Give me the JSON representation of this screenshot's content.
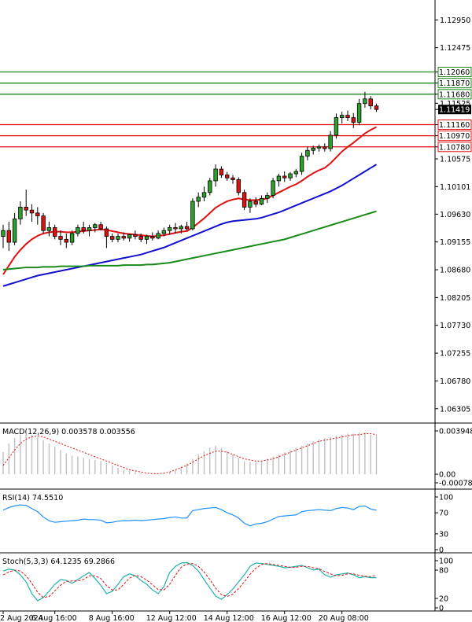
{
  "chart_data": [
    {
      "type": "candlestick",
      "title": "",
      "price_axis": {
        "range": [
          1.0606,
          1.1329
        ],
        "ticks": [
          "1.12950",
          "1.12475",
          "1.12060",
          "1.11870",
          "1.11680",
          "1.11525",
          "1.11419",
          "1.11160",
          "1.10970",
          "1.10780",
          "1.10575",
          "1.10101",
          "1.09630",
          "1.09155",
          "1.08680",
          "1.08205",
          "1.07730",
          "1.07255",
          "1.06780",
          "1.06305"
        ]
      },
      "horizontal_levels": [
        {
          "value": 1.1206,
          "label": "1.12060",
          "color": "#1a8a1a"
        },
        {
          "value": 1.1187,
          "label": "1.11870",
          "color": "#1a8a1a"
        },
        {
          "value": 1.1168,
          "label": "1.11680",
          "color": "#1a8a1a"
        },
        {
          "value": 1.1116,
          "label": "1.11160",
          "color": "#e01010"
        },
        {
          "value": 1.1097,
          "label": "1.10970",
          "color": "#e01010"
        },
        {
          "value": 1.1078,
          "label": "1.10780",
          "color": "#e01010"
        }
      ],
      "last_price": {
        "value": 1.11419,
        "label": "1.11419"
      },
      "candles": [
        [
          1.0925,
          1.0945,
          1.0905,
          1.0935
        ],
        [
          1.0935,
          1.095,
          1.09,
          1.0915
        ],
        [
          1.0915,
          1.0965,
          1.091,
          1.0955
        ],
        [
          1.0955,
          1.0985,
          1.0945,
          1.0975
        ],
        [
          1.0975,
          1.1005,
          1.096,
          1.097
        ],
        [
          1.097,
          1.098,
          1.095,
          1.0965
        ],
        [
          1.0965,
          1.0975,
          1.0945,
          1.096
        ],
        [
          1.096,
          1.0965,
          1.093,
          1.0935
        ],
        [
          1.0935,
          1.095,
          1.0925,
          1.094
        ],
        [
          1.094,
          1.0945,
          1.092,
          1.0925
        ],
        [
          1.0925,
          1.0935,
          1.091,
          1.092
        ],
        [
          1.092,
          1.093,
          1.0905,
          1.0915
        ],
        [
          1.0915,
          1.0935,
          1.091,
          1.093
        ],
        [
          1.093,
          1.0945,
          1.0925,
          1.094
        ],
        [
          1.094,
          1.095,
          1.093,
          1.0935
        ],
        [
          1.0935,
          1.0945,
          1.0925,
          1.094
        ],
        [
          1.094,
          1.0948,
          1.0932,
          1.0945
        ],
        [
          1.0945,
          1.095,
          1.0935,
          1.0938
        ],
        [
          1.0938,
          1.0942,
          1.0905,
          1.0925
        ],
        [
          1.0925,
          1.093,
          1.0915,
          1.092
        ],
        [
          1.092,
          1.093,
          1.0915,
          1.0925
        ],
        [
          1.0925,
          1.0932,
          1.0918,
          1.0922
        ],
        [
          1.0922,
          1.093,
          1.0916,
          1.0928
        ],
        [
          1.0928,
          1.0935,
          1.092,
          1.0925
        ],
        [
          1.0925,
          1.093,
          1.0915,
          1.092
        ],
        [
          1.092,
          1.0928,
          1.0912,
          1.0925
        ],
        [
          1.0925,
          1.0932,
          1.0918,
          1.0922
        ],
        [
          1.0922,
          1.0935,
          1.092,
          1.093
        ],
        [
          1.093,
          1.094,
          1.0925,
          1.0935
        ],
        [
          1.0935,
          1.0945,
          1.0928,
          1.094
        ],
        [
          1.094,
          1.0948,
          1.093,
          1.0938
        ],
        [
          1.0938,
          1.0945,
          1.093,
          1.0942
        ],
        [
          1.0942,
          1.095,
          1.0935,
          1.0938
        ],
        [
          1.0938,
          1.099,
          1.0935,
          1.0985
        ],
        [
          1.0985,
          1.1,
          1.0975,
          1.0992
        ],
        [
          1.0992,
          1.101,
          1.0985,
          1.1
        ],
        [
          1.1,
          1.1025,
          1.0995,
          1.102
        ],
        [
          1.102,
          1.1048,
          1.101,
          1.104
        ],
        [
          1.104,
          1.1045,
          1.1025,
          1.103
        ],
        [
          1.103,
          1.1035,
          1.102,
          1.1025
        ],
        [
          1.1025,
          1.103,
          1.1015,
          1.1022
        ],
        [
          1.1022,
          1.1026,
          1.0995,
          1.1
        ],
        [
          1.1,
          1.1005,
          1.097,
          1.0975
        ],
        [
          1.0975,
          1.099,
          1.0965,
          1.0985
        ],
        [
          1.0985,
          1.0992,
          1.0975,
          1.098
        ],
        [
          1.098,
          1.0995,
          1.0978,
          1.099
        ],
        [
          1.099,
          1.1,
          1.0982,
          1.0995
        ],
        [
          1.0995,
          1.1025,
          1.099,
          1.102
        ],
        [
          1.102,
          1.1032,
          1.101,
          1.1028
        ],
        [
          1.1028,
          1.1036,
          1.1018,
          1.1025
        ],
        [
          1.1025,
          1.1035,
          1.102,
          1.1032
        ],
        [
          1.1032,
          1.104,
          1.1026,
          1.1036
        ],
        [
          1.1036,
          1.1068,
          1.103,
          1.1062
        ],
        [
          1.1062,
          1.1078,
          1.1055,
          1.1072
        ],
        [
          1.1072,
          1.108,
          1.1065,
          1.1076
        ],
        [
          1.1076,
          1.1082,
          1.107,
          1.1078
        ],
        [
          1.1078,
          1.1084,
          1.107,
          1.1075
        ],
        [
          1.1075,
          1.1105,
          1.107,
          1.1098
        ],
        [
          1.1098,
          1.1135,
          1.1092,
          1.1128
        ],
        [
          1.1128,
          1.1138,
          1.1118,
          1.1132
        ],
        [
          1.1132,
          1.114,
          1.1122,
          1.1128
        ],
        [
          1.1128,
          1.1136,
          1.111,
          1.112
        ],
        [
          1.112,
          1.116,
          1.1115,
          1.1152
        ],
        [
          1.1152,
          1.1172,
          1.1145,
          1.116
        ],
        [
          1.116,
          1.1165,
          1.1142,
          1.1148
        ],
        [
          1.1148,
          1.1152,
          1.1138,
          1.1142
        ]
      ],
      "moving_averages": [
        {
          "name": "red",
          "color": "#e01010",
          "values": [
            1.086,
            1.0875,
            1.089,
            1.0902,
            1.0912,
            1.092,
            1.0926,
            1.093,
            1.0932,
            1.0933,
            1.0933,
            1.0932,
            1.0932,
            1.0933,
            1.0934,
            1.0935,
            1.0936,
            1.0937,
            1.0936,
            1.0934,
            1.0932,
            1.093,
            1.0929,
            1.0928,
            1.0927,
            1.0926,
            1.0925,
            1.0926,
            1.0927,
            1.0929,
            1.0931,
            1.0933,
            1.0934,
            1.094,
            1.0948,
            1.0956,
            1.0965,
            1.0974,
            1.098,
            1.0985,
            1.0988,
            1.099,
            1.0988,
            1.0987,
            1.0987,
            1.0988,
            1.099,
            1.0995,
            1.1,
            1.1005,
            1.101,
            1.1014,
            1.102,
            1.1027,
            1.1033,
            1.1038,
            1.1042,
            1.105,
            1.106,
            1.107,
            1.1078,
            1.1085,
            1.1093,
            1.1101,
            1.1107,
            1.1112
          ]
        },
        {
          "name": "blue",
          "color": "#1010d0",
          "values": [
            1.084,
            1.0843,
            1.0846,
            1.0849,
            1.0852,
            1.0855,
            1.0858,
            1.086,
            1.0862,
            1.0864,
            1.0866,
            1.0868,
            1.087,
            1.0872,
            1.0874,
            1.0876,
            1.0878,
            1.088,
            1.0882,
            1.0884,
            1.0886,
            1.0888,
            1.089,
            1.0892,
            1.0894,
            1.0897,
            1.09,
            1.0903,
            1.0906,
            1.091,
            1.0914,
            1.0918,
            1.0922,
            1.0926,
            1.093,
            1.0934,
            1.0938,
            1.0942,
            1.0946,
            1.0949,
            1.0951,
            1.0952,
            1.0953,
            1.0954,
            1.0955,
            1.0957,
            1.096,
            1.0963,
            1.0966,
            1.097,
            1.0974,
            1.0978,
            1.0982,
            1.0986,
            1.099,
            1.0994,
            1.0998,
            1.1002,
            1.1007,
            1.1012,
            1.1018,
            1.1024,
            1.103,
            1.1036,
            1.1042,
            1.1048
          ]
        },
        {
          "name": "green",
          "color": "#1a8a1a",
          "values": [
            1.0868,
            1.0869,
            1.087,
            1.0871,
            1.0872,
            1.0872,
            1.0872,
            1.0873,
            1.0873,
            1.0873,
            1.0874,
            1.0874,
            1.0874,
            1.0874,
            1.0874,
            1.0875,
            1.0875,
            1.0875,
            1.0875,
            1.0875,
            1.0875,
            1.0876,
            1.0876,
            1.0876,
            1.0876,
            1.0877,
            1.0877,
            1.0878,
            1.0879,
            1.088,
            1.0882,
            1.0884,
            1.0886,
            1.0888,
            1.089,
            1.0892,
            1.0894,
            1.0896,
            1.0898,
            1.09,
            1.0902,
            1.0904,
            1.0906,
            1.0908,
            1.091,
            1.0912,
            1.0914,
            1.0916,
            1.0918,
            1.092,
            1.0923,
            1.0926,
            1.0929,
            1.0932,
            1.0935,
            1.0938,
            1.0941,
            1.0944,
            1.0947,
            1.095,
            1.0953,
            1.0956,
            1.0959,
            1.0962,
            1.0965,
            1.0968
          ]
        }
      ],
      "x_axis_labels": [
        {
          "label": "2 Aug 2024",
          "index": 0
        },
        {
          "label": "6 Aug 16:00",
          "index": 9
        },
        {
          "label": "8 Aug 16:00",
          "index": 19
        },
        {
          "label": "12 Aug 12:00",
          "index": 29
        },
        {
          "label": "14 Aug 12:00",
          "index": 39
        },
        {
          "label": "16 Aug 12:00",
          "index": 49
        },
        {
          "label": "20 Aug 08:00",
          "index": 59
        }
      ]
    },
    {
      "type": "bar+line",
      "indicator": "MACD",
      "label": "MACD(12,26,9) 0.003578 0.003556",
      "ticks": [
        "0.003948",
        "0.00",
        "-0.000785"
      ],
      "range": [
        -0.000785,
        0.003948
      ],
      "histogram": [
        0.002,
        0.0028,
        0.0033,
        0.0036,
        0.0037,
        0.0036,
        0.0034,
        0.0031,
        0.0028,
        0.0025,
        0.0022,
        0.0019,
        0.0017,
        0.0016,
        0.0015,
        0.0014,
        0.0013,
        0.0012,
        0.001,
        0.0008,
        0.0006,
        0.0004,
        0.0003,
        0.0002,
        0.0001,
        5e-05,
        0.0,
        0.0,
        0.0001,
        0.0002,
        0.0004,
        0.0007,
        0.001,
        0.0014,
        0.0018,
        0.0021,
        0.0024,
        0.0026,
        0.0024,
        0.0021,
        0.0018,
        0.0015,
        0.0012,
        0.0011,
        0.0011,
        0.0012,
        0.0014,
        0.0016,
        0.0018,
        0.002,
        0.0022,
        0.0024,
        0.0026,
        0.0028,
        0.003,
        0.0032,
        0.0033,
        0.0034,
        0.0035,
        0.0036,
        0.0037,
        0.0037,
        0.0038,
        0.0038,
        0.0036,
        0.0036
      ],
      "signal": [
        0.0008,
        0.0015,
        0.0022,
        0.0028,
        0.0032,
        0.0034,
        0.0035,
        0.0034,
        0.0032,
        0.003,
        0.0028,
        0.0026,
        0.0024,
        0.0022,
        0.002,
        0.0018,
        0.0016,
        0.0014,
        0.0012,
        0.001,
        0.0008,
        0.0006,
        0.0004,
        0.0003,
        0.0002,
        0.0001,
        5e-05,
        5e-05,
        0.0001,
        0.0002,
        0.0004,
        0.0006,
        0.0008,
        0.0011,
        0.0014,
        0.0017,
        0.0019,
        0.0021,
        0.0021,
        0.002,
        0.0018,
        0.0016,
        0.0014,
        0.0013,
        0.0012,
        0.0012,
        0.0013,
        0.0014,
        0.0016,
        0.0018,
        0.002,
        0.0022,
        0.0024,
        0.0026,
        0.0028,
        0.003,
        0.0031,
        0.0032,
        0.0033,
        0.0034,
        0.0035,
        0.0036,
        0.0036,
        0.0037,
        0.0037,
        0.0036
      ]
    },
    {
      "type": "line",
      "indicator": "RSI",
      "label": "RSI(14) 74.5510",
      "ticks": [
        "100",
        "70",
        "30",
        "0"
      ],
      "range": [
        0,
        100
      ],
      "values": [
        75,
        80,
        83,
        85,
        84,
        78,
        72,
        62,
        55,
        52,
        53,
        54,
        55,
        56,
        58,
        57,
        57,
        56,
        51,
        52,
        54,
        55,
        55,
        56,
        55,
        56,
        57,
        58,
        59,
        61,
        62,
        60,
        60,
        74,
        76,
        78,
        79,
        80,
        76,
        70,
        66,
        60,
        50,
        45,
        49,
        50,
        53,
        58,
        63,
        64,
        65,
        66,
        72,
        74,
        75,
        76,
        75,
        74,
        78,
        80,
        79,
        76,
        82,
        83,
        77,
        75
      ]
    },
    {
      "type": "line",
      "indicator": "Stochastic",
      "label": "Stoch(5,3,3) 64.1235 69.2866",
      "ticks": [
        "100",
        "80",
        "20",
        "0"
      ],
      "range": [
        0,
        100
      ],
      "k": [
        78,
        82,
        80,
        70,
        55,
        30,
        15,
        22,
        35,
        50,
        60,
        58,
        52,
        60,
        68,
        75,
        62,
        48,
        30,
        35,
        50,
        66,
        72,
        68,
        58,
        50,
        38,
        30,
        45,
        75,
        88,
        95,
        96,
        90,
        78,
        60,
        42,
        25,
        18,
        28,
        40,
        55,
        70,
        88,
        95,
        94,
        92,
        90,
        88,
        85,
        86,
        88,
        90,
        85,
        80,
        82,
        70,
        65,
        70,
        72,
        74,
        70,
        64,
        66,
        64,
        64
      ],
      "d": [
        70,
        76,
        80,
        78,
        68,
        52,
        33,
        22,
        24,
        36,
        48,
        56,
        57,
        57,
        60,
        68,
        68,
        62,
        47,
        38,
        38,
        50,
        63,
        69,
        66,
        59,
        49,
        39,
        38,
        50,
        69,
        86,
        93,
        94,
        88,
        76,
        60,
        42,
        28,
        24,
        29,
        41,
        55,
        71,
        84,
        92,
        94,
        92,
        90,
        88,
        86,
        86,
        88,
        88,
        85,
        83,
        77,
        72,
        68,
        69,
        72,
        72,
        69,
        67,
        66,
        69
      ]
    }
  ]
}
